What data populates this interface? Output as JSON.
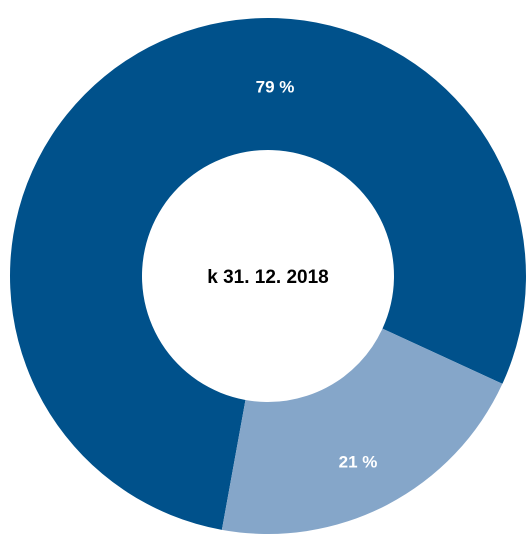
{
  "chart_data": {
    "type": "donut",
    "center_label": "k 31. 12. 2018",
    "values": [
      79,
      21
    ],
    "value_labels": [
      "79 %",
      "21 %"
    ],
    "colors": [
      "#00518b",
      "#85a6c9"
    ]
  }
}
